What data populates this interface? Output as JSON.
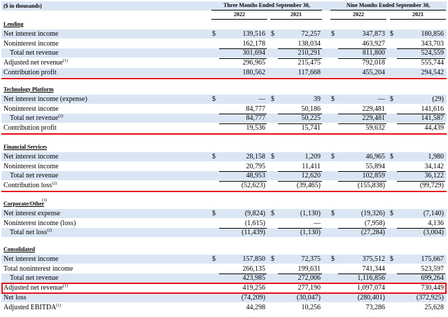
{
  "header": {
    "units": "($ in thousands)",
    "three_months": "Three Months Ended September 30,",
    "nine_months": "Nine Months Ended September 30,",
    "years": [
      "2022",
      "2021",
      "2022",
      "2021"
    ]
  },
  "sections": [
    {
      "title": "Lending",
      "rows": [
        {
          "label": "Net interest income",
          "dollar": [
            true,
            true,
            true,
            true
          ],
          "values": [
            "139,516",
            "72,257",
            "347,873",
            "180,856"
          ]
        },
        {
          "label": "Noninterest income",
          "dollar": [
            false,
            false,
            false,
            false
          ],
          "values": [
            "162,178",
            "138,034",
            "463,927",
            "343,703"
          ]
        },
        {
          "label": "Total net revenue",
          "indent": true,
          "dollar": [
            false,
            false,
            false,
            false
          ],
          "values": [
            "301,694",
            "210,291",
            "811,800",
            "524,559"
          ]
        },
        {
          "label": "Adjusted net revenue",
          "sup": "(1)",
          "dollar": [
            false,
            false,
            false,
            false
          ],
          "values": [
            "296,965",
            "215,475",
            "792,018",
            "555,744"
          ]
        },
        {
          "label": "Contribution profit",
          "dollar": [
            false,
            false,
            false,
            false
          ],
          "values": [
            "180,562",
            "117,668",
            "455,204",
            "294,542"
          ]
        }
      ]
    },
    {
      "title": "Technology Platform",
      "rows": [
        {
          "label": "Net interest income (expense)",
          "dollar": [
            true,
            true,
            true,
            true
          ],
          "values": [
            "—",
            "39",
            "—",
            "(29)"
          ]
        },
        {
          "label": "Noninterest income",
          "dollar": [
            false,
            false,
            false,
            false
          ],
          "values": [
            "84,777",
            "50,186",
            "229,481",
            "141,616"
          ]
        },
        {
          "label": "Total net revenue",
          "sup": "(2)",
          "indent": true,
          "dollar": [
            false,
            false,
            false,
            false
          ],
          "values": [
            "84,777",
            "50,225",
            "229,481",
            "141,587"
          ]
        },
        {
          "label": "Contribution profit",
          "dollar": [
            false,
            false,
            false,
            false
          ],
          "values": [
            "19,536",
            "15,741",
            "59,632",
            "44,439"
          ]
        }
      ]
    },
    {
      "title": "Financial Services",
      "rows": [
        {
          "label": "Net interest income",
          "dollar": [
            true,
            true,
            true,
            true
          ],
          "values": [
            "28,158",
            "1,209",
            "46,965",
            "1,980"
          ]
        },
        {
          "label": "Noninterest income",
          "dollar": [
            false,
            false,
            false,
            false
          ],
          "values": [
            "20,795",
            "11,411",
            "55,894",
            "34,142"
          ]
        },
        {
          "label": "Total net revenue",
          "indent": true,
          "dollar": [
            false,
            false,
            false,
            false
          ],
          "values": [
            "48,953",
            "12,620",
            "102,859",
            "36,122"
          ]
        },
        {
          "label": "Contribution loss",
          "sup": "(2)",
          "dollar": [
            false,
            false,
            false,
            false
          ],
          "values": [
            "(52,623)",
            "(39,465)",
            "(155,838)",
            "(99,729)"
          ]
        }
      ]
    },
    {
      "title": "Corporate/Other",
      "title_sup": "(3)",
      "rows": [
        {
          "label": "Net interest expense",
          "dollar": [
            true,
            true,
            true,
            true
          ],
          "values": [
            "(9,824)",
            "(1,130)",
            "(19,326)",
            "(7,140)"
          ]
        },
        {
          "label": "Noninterest income (loss)",
          "dollar": [
            false,
            false,
            false,
            false
          ],
          "values": [
            "(1,615)",
            "—",
            "(7,958)",
            "4,136"
          ]
        },
        {
          "label": "Total net loss",
          "sup": "(2)",
          "indent": true,
          "dollar": [
            false,
            false,
            false,
            false
          ],
          "values": [
            "(11,439)",
            "(1,130)",
            "(27,284)",
            "(3,004)"
          ]
        }
      ]
    },
    {
      "title": "Consolidated",
      "rows": [
        {
          "label": "Net interest income",
          "dollar": [
            true,
            true,
            true,
            true
          ],
          "values": [
            "157,850",
            "72,375",
            "375,512",
            "175,667"
          ]
        },
        {
          "label": "Total noninterest income",
          "dollar": [
            false,
            false,
            false,
            false
          ],
          "values": [
            "266,135",
            "199,631",
            "741,344",
            "523,597"
          ]
        },
        {
          "label": "Total net revenue",
          "indent": true,
          "dollar": [
            false,
            false,
            false,
            false
          ],
          "values": [
            "423,985",
            "272,006",
            "1,116,856",
            "699,264"
          ]
        },
        {
          "label": "Adjusted net revenue",
          "sup": "(1)",
          "dollar": [
            false,
            false,
            false,
            false
          ],
          "values": [
            "419,256",
            "277,190",
            "1,097,074",
            "730,449"
          ]
        },
        {
          "label": "Net loss",
          "dollar": [
            false,
            false,
            false,
            false
          ],
          "values": [
            "(74,209)",
            "(30,047)",
            "(280,401)",
            "(372,925)"
          ]
        },
        {
          "label": "Adjusted EBITDA",
          "sup": "(1)",
          "dollar": [
            false,
            false,
            false,
            false
          ],
          "values": [
            "44,298",
            "10,256",
            "73,286",
            "25,628"
          ]
        }
      ]
    }
  ],
  "symbols": {
    "dollar": "$"
  },
  "colors": {
    "row_shade": "#dbe6f4",
    "highlight": "#e8101a"
  }
}
